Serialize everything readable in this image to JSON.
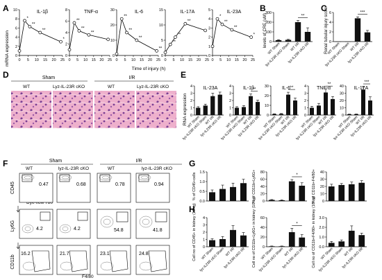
{
  "panel_letters": [
    "A",
    "B",
    "C",
    "D",
    "E",
    "F",
    "G",
    "H"
  ],
  "axis_text": {
    "a_ylabel": "mRNA expression",
    "a_xlabel": "Time of injury  (h)",
    "b_ylabel": "levels of CRE (uM)",
    "c_ylabel": "Renal tubular injury score",
    "e_ylabel": "RNA expression",
    "f_row1_label": "CD45",
    "f_row1_xlabel": "Dye-flow 780",
    "f_row2_label": "Ly6G",
    "f_row3_label": "CD11b",
    "f_row3_xlabel": "F4/80"
  },
  "group_labels": {
    "sham": "Sham",
    "ir": "I/R",
    "wt": "WT",
    "cko": "Lyz-IL-23R cKO",
    "cko_lower": "lyz-IL-23R cKO",
    "wt_sham": "WT Sham",
    "cko_sham": "lyz-IL23R cKO Sham",
    "wt_ir": "WT I/R",
    "cko_ir": "lyz-IL23R cKO I/R"
  },
  "flow": {
    "row1": [
      "0.47",
      "0.68",
      "0.78",
      "0.94"
    ],
    "row2": [
      "4.2",
      "4.2",
      "54.8",
      "41.8"
    ],
    "row3": [
      "16.2",
      "21.7",
      "23.1",
      "24.8"
    ]
  },
  "colors": {
    "bar": "#111111",
    "he_tissue": "#e9a6c6",
    "he_nuclei": "#6a3a8c"
  },
  "chart_data": [
    {
      "id": "A1",
      "type": "line",
      "title": "IL-1β",
      "x": [
        0,
        3,
        6,
        12,
        24
      ],
      "y": [
        1,
        7.6,
        6.3,
        5.0,
        3.0
      ],
      "xticks": [
        "0",
        "5",
        "10",
        "15",
        "20",
        "25"
      ],
      "yticks": [
        "0",
        "2",
        "4",
        "6",
        "8",
        "10"
      ],
      "ylim": [
        0,
        10
      ],
      "annotations": [
        "*",
        "**",
        "**",
        "*"
      ]
    },
    {
      "id": "A2",
      "type": "line",
      "title": "TNF-α",
      "x": [
        0,
        3,
        6,
        12,
        24
      ],
      "y": [
        1,
        5.7,
        4.3,
        3.6,
        2.8
      ],
      "xticks": [
        "0",
        "5",
        "10",
        "15",
        "20",
        "25"
      ],
      "yticks": [
        "0",
        "2",
        "4",
        "6",
        "8"
      ],
      "ylim": [
        0,
        8
      ],
      "annotations": [
        "**",
        "**",
        "**"
      ]
    },
    {
      "id": "A3",
      "type": "line",
      "title": "IL-6",
      "x": [
        0,
        3,
        6,
        12,
        24
      ],
      "y": [
        1,
        24,
        15,
        10,
        3
      ],
      "xticks": [
        "0",
        "5",
        "10",
        "15",
        "20",
        "25"
      ],
      "yticks": [
        "0",
        "10",
        "20",
        "30"
      ],
      "ylim": [
        0,
        30
      ],
      "annotations": [
        "**",
        "**",
        "**",
        "**"
      ]
    },
    {
      "id": "A4",
      "type": "line",
      "title": "IL-17A",
      "x": [
        0,
        3,
        6,
        12,
        24
      ],
      "y": [
        1,
        3.6,
        6.0,
        10.4,
        8.2
      ],
      "xticks": [
        "0",
        "5",
        "10",
        "15",
        "20",
        "25"
      ],
      "yticks": [
        "0",
        "5",
        "10",
        "15"
      ],
      "ylim": [
        0,
        15
      ],
      "annotations": [
        "**",
        "**",
        "**"
      ]
    },
    {
      "id": "A5",
      "type": "line",
      "title": "IL-23A",
      "x": [
        0,
        3,
        6,
        12,
        24
      ],
      "y": [
        1,
        4.0,
        3.4,
        2.8,
        2.0
      ],
      "xticks": [
        "0",
        "5",
        "10",
        "15",
        "20",
        "25"
      ],
      "yticks": [
        "0",
        "1",
        "2",
        "3",
        "4",
        "5"
      ],
      "ylim": [
        0,
        5
      ],
      "annotations": [
        "*",
        "**",
        "**",
        "*"
      ]
    },
    {
      "id": "B",
      "type": "bar",
      "title": "",
      "categories": [
        "WT Sham",
        "lyz-IL23R cKO Sham",
        "WT I/R",
        "lyz-IL23R cKO I/R"
      ],
      "values": [
        15,
        18,
        200,
        100
      ],
      "errors": [
        5,
        5,
        18,
        42
      ],
      "yticks": [
        "0",
        "100",
        "200",
        "300"
      ],
      "ylim": [
        0,
        300
      ],
      "annotations": [
        "**"
      ]
    },
    {
      "id": "C",
      "type": "bar",
      "title": "",
      "categories": [
        "WT Sham",
        "lyz-IL23R cKO Sham",
        "WT I/R",
        "lyz-IL23R cKO I/R"
      ],
      "values": [
        0,
        0,
        4.8,
        1.9
      ],
      "errors": [
        0,
        0,
        0.3,
        0.4
      ],
      "yticks": [
        "0",
        "2",
        "4",
        "6"
      ],
      "ylim": [
        0,
        6
      ],
      "annotations": [
        "***"
      ]
    },
    {
      "id": "E1",
      "type": "bar",
      "title": "IL-23A",
      "categories": [
        "WT Sham",
        "lyz-IL23R cKO Sham",
        "WT I/R",
        "lyz-IL23R cKO I/R"
      ],
      "values": [
        1.0,
        1.3,
        2.6,
        2.8
      ],
      "errors": [
        0.15,
        0.2,
        0.4,
        0.35
      ],
      "yticks": [
        "0",
        "1",
        "2",
        "3",
        "4"
      ],
      "ylim": [
        0,
        4
      ],
      "annotations": []
    },
    {
      "id": "E2",
      "type": "bar",
      "title": "IL-1β",
      "categories": [
        "WT Sham",
        "lyz-IL23R cKO Sham",
        "WT I/R",
        "lyz-IL23R cKO I/R"
      ],
      "values": [
        1.0,
        1.1,
        2.6,
        1.8
      ],
      "errors": [
        0.15,
        0.2,
        0.3,
        0.25
      ],
      "yticks": [
        "0",
        "1",
        "2",
        "3",
        "4"
      ],
      "ylim": [
        0,
        4
      ],
      "annotations": [
        "**"
      ]
    },
    {
      "id": "E3",
      "type": "bar",
      "title": "IL-6",
      "categories": [
        "WT Sham",
        "lyz-IL23R cKO Sham",
        "WT I/R",
        "lyz-IL23R cKO I/R"
      ],
      "values": [
        1.0,
        1.2,
        21,
        15
      ],
      "errors": [
        0.3,
        0.4,
        2.5,
        2.5
      ],
      "yticks": [
        "0",
        "10",
        "20",
        "30"
      ],
      "ylim": [
        0,
        30
      ],
      "annotations": [
        "**"
      ]
    },
    {
      "id": "E4",
      "type": "bar",
      "title": "TNF-α",
      "categories": [
        "WT Sham",
        "lyz-IL23R cKO Sham",
        "WT I/R",
        "lyz-IL23R cKO I/R"
      ],
      "values": [
        1.0,
        1.3,
        3.1,
        2.2
      ],
      "errors": [
        0.2,
        0.3,
        0.5,
        0.35
      ],
      "yticks": [
        "0",
        "1",
        "2",
        "3",
        "4"
      ],
      "ylim": [
        0,
        4
      ],
      "annotations": [
        "**"
      ]
    },
    {
      "id": "E5",
      "type": "bar",
      "title": "IL-17A",
      "categories": [
        "WT Sham",
        "lyz-IL23R cKO Sham",
        "WT I/R",
        "lyz-IL23R cKO I/R"
      ],
      "values": [
        1.0,
        1.2,
        35,
        20
      ],
      "errors": [
        0.3,
        0.3,
        4,
        5
      ],
      "yticks": [
        "0",
        "10",
        "20",
        "30",
        "40"
      ],
      "ylim": [
        0,
        40
      ],
      "annotations": [
        "***"
      ]
    },
    {
      "id": "G1",
      "type": "bar",
      "title": "",
      "ylabel": "% of CD45+cells",
      "categories": [
        "WT Sham",
        "lyz-IL23R cKO Sham",
        "WT I/R",
        "lyz-IL23R cKO I/R"
      ],
      "values": [
        0.45,
        0.62,
        0.72,
        0.92
      ],
      "errors": [
        0.12,
        0.2,
        0.2,
        0.2
      ],
      "yticks": [
        "0.0",
        "0.5",
        "1.0",
        "1.5"
      ],
      "ylim": [
        0,
        1.5
      ],
      "annotations": []
    },
    {
      "id": "G2",
      "type": "bar",
      "title": "",
      "ylabel": "% of CD11b+Ly6G+",
      "categories": [
        "WT Sham",
        "lyz-IL23R cKO Sham",
        "WT I/R",
        "lyz-IL23R cKO I/R"
      ],
      "values": [
        3,
        2,
        54,
        42
      ],
      "errors": [
        1,
        1,
        5,
        8
      ],
      "yticks": [
        "0",
        "20",
        "40",
        "60",
        "80"
      ],
      "ylim": [
        0,
        80
      ],
      "annotations": [
        "*"
      ]
    },
    {
      "id": "G3",
      "type": "bar",
      "title": "",
      "ylabel": "% of CD11b+F4/80+",
      "categories": [
        "WT Sham",
        "lyz-IL23R cKO Sham",
        "WT I/R",
        "lyz-IL23R cKO I/R"
      ],
      "values": [
        20,
        22,
        23,
        25
      ],
      "errors": [
        3,
        2,
        3,
        3
      ],
      "yticks": [
        "0",
        "10",
        "20",
        "30",
        "40"
      ],
      "ylim": [
        0,
        40
      ],
      "annotations": []
    },
    {
      "id": "H1",
      "type": "bar",
      "title": "",
      "ylabel": "Cell no of CD45+ in kidney (10⁶/g)",
      "categories": [
        "WT Sham",
        "lyz-IL23R cKO Sham",
        "WT I/R",
        "lyz-IL23R cKO I/R"
      ],
      "values": [
        0.9,
        1.05,
        2.3,
        1.55
      ],
      "errors": [
        0.2,
        0.35,
        0.6,
        0.4
      ],
      "yticks": [
        "0",
        "1",
        "2",
        "3",
        "4"
      ],
      "ylim": [
        0,
        4
      ],
      "annotations": []
    },
    {
      "id": "H2",
      "type": "bar",
      "title": "",
      "ylabel": "Cell no of CD11b+Ly6G+ in kidney (10⁶/g)",
      "categories": [
        "WT Sham",
        "lyz-IL23R cKO Sham",
        "WT I/R",
        "lyz-IL23R cKO I/R"
      ],
      "values": [
        1,
        1,
        30,
        19
      ],
      "errors": [
        0.5,
        0.5,
        8,
        6
      ],
      "yticks": [
        "0",
        "20",
        "40",
        "60"
      ],
      "ylim": [
        0,
        60
      ],
      "annotations": [
        "*"
      ]
    },
    {
      "id": "H3",
      "type": "bar",
      "title": "",
      "ylabel": "Cell no of CD11b+F4/80+ in kidney (10⁶/g)",
      "categories": [
        "WT Sham",
        "lyz-IL23R cKO Sham",
        "WT I/R",
        "lyz-IL23R cKO I/R"
      ],
      "values": [
        0.4,
        0.55,
        1.65,
        1.2
      ],
      "errors": [
        0.15,
        0.15,
        0.5,
        0.2
      ],
      "yticks": [
        "0.0",
        "1.0",
        "2.0",
        "3.0"
      ],
      "ylim": [
        0,
        3
      ],
      "annotations": []
    }
  ]
}
